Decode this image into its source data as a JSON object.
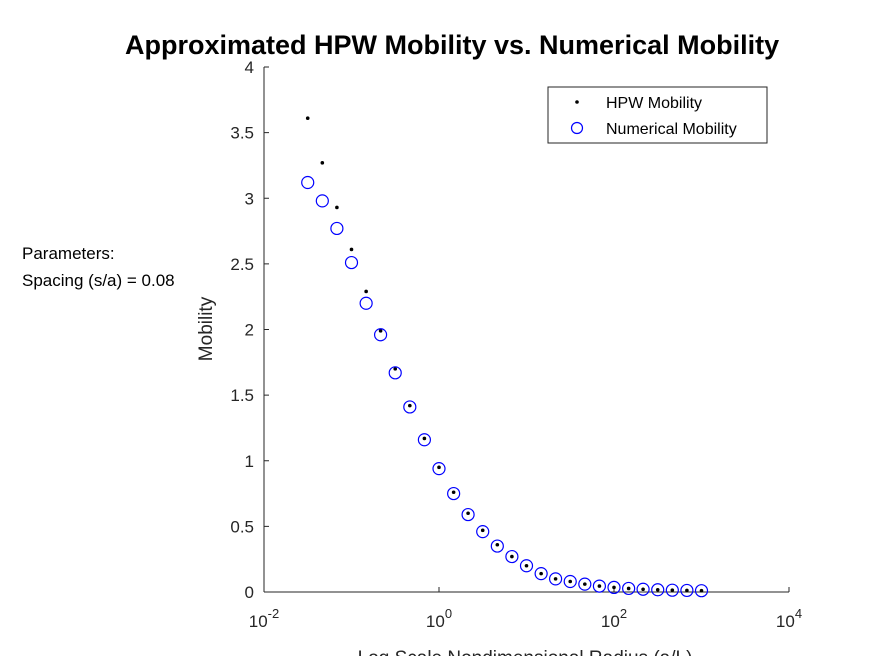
{
  "chart_data": {
    "type": "scatter",
    "title": "Approximated HPW Mobility vs. Numerical Mobility",
    "xlabel": "Log Scale Nondimensional Radius (a/L)",
    "ylabel": "Mobility",
    "xscale": "log",
    "xlim": [
      0.01,
      10000
    ],
    "ylim": [
      0,
      4
    ],
    "x_ticks": [
      {
        "base": "10",
        "exp": "-2"
      },
      {
        "base": "10",
        "exp": "0"
      },
      {
        "base": "10",
        "exp": "2"
      },
      {
        "base": "10",
        "exp": "4"
      }
    ],
    "y_ticks": [
      "0",
      "0.5",
      "1",
      "1.5",
      "2",
      "2.5",
      "3",
      "3.5",
      "4"
    ],
    "y_tick_values": [
      0,
      0.5,
      1,
      1.5,
      2,
      2.5,
      3,
      3.5,
      4
    ],
    "grid": false,
    "legend_position": "top-right",
    "x": [
      0.0316,
      0.0464,
      0.0681,
      0.1,
      0.147,
      0.215,
      0.316,
      0.464,
      0.681,
      1.0,
      1.47,
      2.15,
      3.16,
      4.64,
      6.81,
      10.0,
      14.7,
      21.5,
      31.6,
      46.4,
      68.1,
      100,
      147,
      215,
      316,
      464,
      681,
      1000
    ],
    "series": [
      {
        "name": "HPW Mobility",
        "marker": "dot",
        "color": "#000000",
        "values": [
          3.61,
          3.27,
          2.93,
          2.61,
          2.29,
          1.99,
          1.7,
          1.42,
          1.17,
          0.95,
          0.76,
          0.6,
          0.47,
          0.36,
          0.27,
          0.2,
          0.14,
          0.1,
          0.08,
          0.06,
          0.045,
          0.035,
          0.027,
          0.021,
          0.017,
          0.014,
          0.012,
          0.01
        ]
      },
      {
        "name": "Numerical Mobility",
        "marker": "open-circle",
        "color": "#0000ff",
        "values": [
          3.12,
          2.98,
          2.77,
          2.51,
          2.2,
          1.96,
          1.67,
          1.41,
          1.16,
          0.94,
          0.75,
          0.59,
          0.46,
          0.35,
          0.27,
          0.2,
          0.14,
          0.1,
          0.08,
          0.06,
          0.045,
          0.035,
          0.027,
          0.021,
          0.017,
          0.014,
          0.012,
          0.01
        ]
      }
    ]
  },
  "annotation": {
    "line1": "Parameters:",
    "line2": "Spacing (s/a) = 0.08"
  }
}
